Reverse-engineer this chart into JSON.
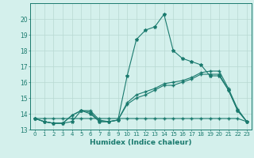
{
  "xlabel": "Humidex (Indice chaleur)",
  "x_values": [
    0,
    1,
    2,
    3,
    4,
    5,
    6,
    7,
    8,
    9,
    10,
    11,
    12,
    13,
    14,
    15,
    16,
    17,
    18,
    19,
    20,
    21,
    22,
    23
  ],
  "line1_y": [
    13.7,
    13.5,
    13.4,
    13.4,
    13.5,
    14.2,
    14.0,
    13.5,
    13.5,
    13.6,
    16.4,
    18.7,
    19.3,
    19.5,
    20.3,
    18.0,
    17.5,
    17.3,
    17.1,
    16.4,
    16.4,
    15.5,
    14.2,
    13.5
  ],
  "line2_y": [
    13.7,
    13.5,
    13.4,
    13.4,
    13.9,
    14.2,
    14.1,
    13.5,
    13.5,
    13.6,
    14.6,
    15.0,
    15.2,
    15.5,
    15.8,
    15.8,
    16.0,
    16.2,
    16.5,
    16.5,
    16.5,
    15.5,
    14.2,
    13.5
  ],
  "line3_y": [
    13.7,
    13.5,
    13.4,
    13.4,
    13.9,
    14.2,
    14.2,
    13.6,
    13.5,
    13.6,
    14.7,
    15.2,
    15.4,
    15.6,
    15.9,
    16.0,
    16.1,
    16.3,
    16.6,
    16.7,
    16.7,
    15.6,
    14.3,
    13.5
  ],
  "line4_y": [
    13.7,
    13.7,
    13.7,
    13.7,
    13.7,
    13.7,
    13.7,
    13.7,
    13.7,
    13.7,
    13.7,
    13.7,
    13.7,
    13.7,
    13.7,
    13.7,
    13.7,
    13.7,
    13.7,
    13.7,
    13.7,
    13.7,
    13.7,
    13.5
  ],
  "line_color": "#1a7a6e",
  "bg_color": "#d4f0ec",
  "grid_color": "#b8d8d2",
  "ylim": [
    13,
    21
  ],
  "xlim": [
    -0.5,
    23.5
  ],
  "yticks": [
    13,
    14,
    15,
    16,
    17,
    18,
    19,
    20
  ],
  "xticks": [
    0,
    1,
    2,
    3,
    4,
    5,
    6,
    7,
    8,
    9,
    10,
    11,
    12,
    13,
    14,
    15,
    16,
    17,
    18,
    19,
    20,
    21,
    22,
    23
  ]
}
